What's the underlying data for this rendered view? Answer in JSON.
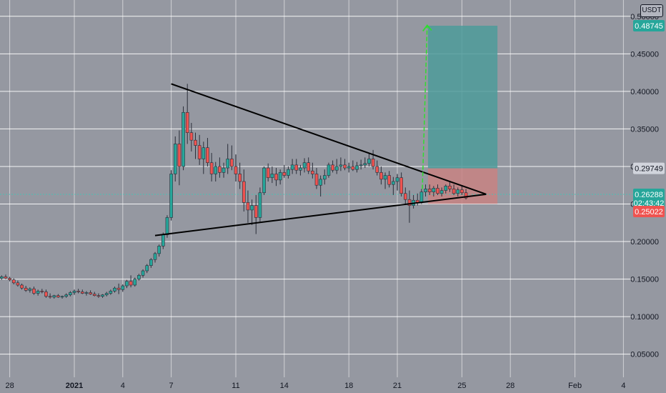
{
  "quote_currency": "USDT",
  "colors": {
    "background": "#9598a1",
    "grid": "#ffffff",
    "up_candle": "#26a69a",
    "down_candle": "#ef5350",
    "pattern_line": "#000000",
    "target_zone": "#4e9b9a",
    "stop_zone": "#c88283",
    "target_arrow": "#2ede2e",
    "last_price_line": "#4cc0b5"
  },
  "chart_data": {
    "type": "candlestick",
    "title": "",
    "xlabel": "",
    "ylabel": "",
    "ylim": [
      0.03,
      0.52
    ],
    "x_ticks": [
      {
        "label": "28",
        "x": -4,
        "bold": false
      },
      {
        "label": "2021",
        "x": 0,
        "bold": true
      },
      {
        "label": "4",
        "x": 3,
        "bold": false
      },
      {
        "label": "7",
        "x": 6,
        "bold": false
      },
      {
        "label": "11",
        "x": 10,
        "bold": false
      },
      {
        "label": "14",
        "x": 13,
        "bold": false
      },
      {
        "label": "18",
        "x": 17,
        "bold": false
      },
      {
        "label": "21",
        "x": 20,
        "bold": false
      },
      {
        "label": "25",
        "x": 24,
        "bold": false
      },
      {
        "label": "28",
        "x": 27,
        "bold": false
      },
      {
        "label": "Feb",
        "x": 31,
        "bold": false
      },
      {
        "label": "4",
        "x": 34,
        "bold": false
      }
    ],
    "y_ticks": [
      {
        "label": "0.05000",
        "y": 0.05
      },
      {
        "label": "0.10000",
        "y": 0.1
      },
      {
        "label": "0.15000",
        "y": 0.15
      },
      {
        "label": "0.20000",
        "y": 0.2
      },
      {
        "label": "0.25000",
        "y": 0.25
      },
      {
        "label": "0.30000",
        "y": 0.3
      },
      {
        "label": "0.35000",
        "y": 0.35
      },
      {
        "label": "0.40000",
        "y": 0.4
      },
      {
        "label": "0.45000",
        "y": 0.45
      },
      {
        "label": "0.50000",
        "y": 0.5
      }
    ],
    "price_tags": [
      {
        "label": "0.48745",
        "y": 0.48745,
        "color": "#26a69a"
      },
      {
        "label": "0.29749",
        "y": 0.29749,
        "color": "#d1d4dc",
        "text_color": "#131722"
      },
      {
        "label": "0.26288",
        "y": 0.26288,
        "color": "#26a69a"
      },
      {
        "label": "02:43:42",
        "y": 0.2515,
        "color": "#26a69a"
      },
      {
        "label": "0.25022",
        "y": 0.24,
        "color": "#ef5350"
      }
    ],
    "candles": [
      [
        -5.0,
        0.15,
        0.154,
        0.146,
        0.148
      ],
      [
        -4.75,
        0.148,
        0.152,
        0.146,
        0.151
      ],
      [
        -4.5,
        0.151,
        0.155,
        0.149,
        0.153
      ],
      [
        -4.25,
        0.153,
        0.156,
        0.15,
        0.151
      ],
      [
        -4.0,
        0.151,
        0.153,
        0.147,
        0.149
      ],
      [
        -3.75,
        0.149,
        0.151,
        0.143,
        0.145
      ],
      [
        -3.5,
        0.145,
        0.148,
        0.14,
        0.142
      ],
      [
        -3.25,
        0.142,
        0.144,
        0.136,
        0.138
      ],
      [
        -3.0,
        0.138,
        0.141,
        0.133,
        0.135
      ],
      [
        -2.75,
        0.135,
        0.139,
        0.132,
        0.137
      ],
      [
        -2.5,
        0.137,
        0.14,
        0.129,
        0.131
      ],
      [
        -2.25,
        0.131,
        0.136,
        0.128,
        0.134
      ],
      [
        -2.0,
        0.134,
        0.137,
        0.131,
        0.133
      ],
      [
        -1.75,
        0.133,
        0.136,
        0.125,
        0.127
      ],
      [
        -1.5,
        0.127,
        0.131,
        0.124,
        0.126
      ],
      [
        -1.25,
        0.126,
        0.129,
        0.124,
        0.128
      ],
      [
        -1.0,
        0.128,
        0.13,
        0.125,
        0.126
      ],
      [
        -0.75,
        0.126,
        0.128,
        0.124,
        0.127
      ],
      [
        -0.5,
        0.127,
        0.131,
        0.125,
        0.129
      ],
      [
        -0.25,
        0.129,
        0.134,
        0.127,
        0.132
      ],
      [
        0.0,
        0.132,
        0.136,
        0.129,
        0.134
      ],
      [
        0.25,
        0.134,
        0.137,
        0.131,
        0.133
      ],
      [
        0.5,
        0.133,
        0.136,
        0.13,
        0.131
      ],
      [
        0.75,
        0.131,
        0.134,
        0.128,
        0.132
      ],
      [
        1.0,
        0.132,
        0.135,
        0.129,
        0.13
      ],
      [
        1.25,
        0.13,
        0.133,
        0.127,
        0.128
      ],
      [
        1.5,
        0.128,
        0.131,
        0.125,
        0.127
      ],
      [
        1.75,
        0.127,
        0.13,
        0.125,
        0.129
      ],
      [
        2.0,
        0.129,
        0.133,
        0.127,
        0.131
      ],
      [
        2.25,
        0.131,
        0.136,
        0.129,
        0.134
      ],
      [
        2.5,
        0.134,
        0.14,
        0.132,
        0.138
      ],
      [
        2.75,
        0.138,
        0.144,
        0.13,
        0.136
      ],
      [
        3.0,
        0.136,
        0.143,
        0.133,
        0.141
      ],
      [
        3.25,
        0.141,
        0.149,
        0.138,
        0.147
      ],
      [
        3.5,
        0.147,
        0.155,
        0.139,
        0.142
      ],
      [
        3.75,
        0.142,
        0.152,
        0.14,
        0.15
      ],
      [
        4.0,
        0.15,
        0.157,
        0.148,
        0.155
      ],
      [
        4.25,
        0.155,
        0.163,
        0.152,
        0.161
      ],
      [
        4.5,
        0.161,
        0.17,
        0.158,
        0.168
      ],
      [
        4.75,
        0.168,
        0.178,
        0.165,
        0.176
      ],
      [
        5.0,
        0.176,
        0.186,
        0.172,
        0.184
      ],
      [
        5.25,
        0.184,
        0.196,
        0.18,
        0.194
      ],
      [
        5.5,
        0.194,
        0.212,
        0.19,
        0.209
      ],
      [
        5.75,
        0.209,
        0.235,
        0.205,
        0.232
      ],
      [
        6.0,
        0.232,
        0.295,
        0.228,
        0.29
      ],
      [
        6.25,
        0.29,
        0.34,
        0.28,
        0.33
      ],
      [
        6.5,
        0.33,
        0.348,
        0.275,
        0.3
      ],
      [
        6.75,
        0.3,
        0.38,
        0.295,
        0.372
      ],
      [
        7.0,
        0.372,
        0.41,
        0.33,
        0.345
      ],
      [
        7.25,
        0.345,
        0.358,
        0.32,
        0.335
      ],
      [
        7.5,
        0.335,
        0.345,
        0.31,
        0.328
      ],
      [
        7.75,
        0.328,
        0.342,
        0.302,
        0.31
      ],
      [
        8.0,
        0.31,
        0.333,
        0.29,
        0.325
      ],
      [
        8.25,
        0.325,
        0.338,
        0.3,
        0.305
      ],
      [
        8.5,
        0.305,
        0.318,
        0.28,
        0.29
      ],
      [
        8.75,
        0.29,
        0.306,
        0.28,
        0.3
      ],
      [
        9.0,
        0.3,
        0.312,
        0.285,
        0.292
      ],
      [
        9.25,
        0.292,
        0.305,
        0.285,
        0.298
      ],
      [
        9.5,
        0.298,
        0.33,
        0.29,
        0.31
      ],
      [
        9.75,
        0.31,
        0.328,
        0.295,
        0.3
      ],
      [
        10.0,
        0.3,
        0.316,
        0.28,
        0.29
      ],
      [
        10.25,
        0.29,
        0.305,
        0.27,
        0.28
      ],
      [
        10.5,
        0.28,
        0.296,
        0.24,
        0.252
      ],
      [
        10.75,
        0.252,
        0.268,
        0.225,
        0.242
      ],
      [
        11.0,
        0.242,
        0.256,
        0.222,
        0.248
      ],
      [
        11.25,
        0.248,
        0.262,
        0.21,
        0.232
      ],
      [
        11.5,
        0.232,
        0.272,
        0.225,
        0.265
      ],
      [
        11.75,
        0.265,
        0.3,
        0.262,
        0.298
      ],
      [
        12.0,
        0.298,
        0.304,
        0.28,
        0.285
      ],
      [
        12.25,
        0.285,
        0.3,
        0.278,
        0.29
      ],
      [
        12.5,
        0.29,
        0.298,
        0.274,
        0.282
      ],
      [
        12.75,
        0.282,
        0.296,
        0.276,
        0.292
      ],
      [
        13.0,
        0.292,
        0.302,
        0.285,
        0.288
      ],
      [
        13.25,
        0.288,
        0.3,
        0.284,
        0.296
      ],
      [
        13.5,
        0.296,
        0.31,
        0.29,
        0.302
      ],
      [
        13.75,
        0.302,
        0.31,
        0.29,
        0.295
      ],
      [
        14.0,
        0.295,
        0.302,
        0.288,
        0.298
      ],
      [
        14.25,
        0.298,
        0.311,
        0.292,
        0.305
      ],
      [
        14.5,
        0.305,
        0.312,
        0.29,
        0.294
      ],
      [
        14.75,
        0.294,
        0.305,
        0.284,
        0.29
      ],
      [
        15.0,
        0.29,
        0.298,
        0.27,
        0.275
      ],
      [
        15.25,
        0.275,
        0.288,
        0.26,
        0.283
      ],
      [
        15.5,
        0.283,
        0.296,
        0.276,
        0.288
      ],
      [
        15.75,
        0.288,
        0.305,
        0.285,
        0.302
      ],
      [
        16.0,
        0.302,
        0.308,
        0.292,
        0.295
      ],
      [
        16.25,
        0.295,
        0.31,
        0.29,
        0.3
      ],
      [
        16.5,
        0.3,
        0.312,
        0.294,
        0.302
      ],
      [
        16.75,
        0.302,
        0.31,
        0.295,
        0.298
      ],
      [
        17.0,
        0.298,
        0.305,
        0.292,
        0.3
      ],
      [
        17.25,
        0.3,
        0.308,
        0.294,
        0.296
      ],
      [
        17.5,
        0.296,
        0.306,
        0.292,
        0.301
      ],
      [
        17.75,
        0.301,
        0.309,
        0.296,
        0.302
      ],
      [
        18.0,
        0.302,
        0.312,
        0.298,
        0.304
      ],
      [
        18.25,
        0.304,
        0.318,
        0.3,
        0.31
      ],
      [
        18.5,
        0.31,
        0.322,
        0.296,
        0.3
      ],
      [
        18.75,
        0.3,
        0.308,
        0.288,
        0.292
      ],
      [
        19.0,
        0.292,
        0.3,
        0.276,
        0.283
      ],
      [
        19.25,
        0.283,
        0.292,
        0.27,
        0.288
      ],
      [
        19.5,
        0.288,
        0.294,
        0.272,
        0.276
      ],
      [
        19.75,
        0.276,
        0.286,
        0.262,
        0.28
      ],
      [
        20.0,
        0.28,
        0.29,
        0.268,
        0.285
      ],
      [
        20.25,
        0.285,
        0.292,
        0.26,
        0.264
      ],
      [
        20.5,
        0.264,
        0.272,
        0.25,
        0.256
      ],
      [
        20.75,
        0.256,
        0.268,
        0.225,
        0.248
      ],
      [
        21.0,
        0.248,
        0.262,
        0.244,
        0.255
      ],
      [
        21.25,
        0.255,
        0.264,
        0.248,
        0.252
      ],
      [
        21.5,
        0.252,
        0.27,
        0.25,
        0.266
      ],
      [
        21.75,
        0.266,
        0.276,
        0.26,
        0.27
      ],
      [
        22.0,
        0.27,
        0.276,
        0.262,
        0.266
      ],
      [
        22.25,
        0.266,
        0.274,
        0.26,
        0.271
      ],
      [
        22.5,
        0.271,
        0.276,
        0.262,
        0.264
      ],
      [
        22.75,
        0.264,
        0.272,
        0.26,
        0.268
      ],
      [
        23.0,
        0.268,
        0.276,
        0.264,
        0.274
      ],
      [
        23.25,
        0.274,
        0.28,
        0.266,
        0.27
      ],
      [
        23.5,
        0.27,
        0.276,
        0.262,
        0.264
      ],
      [
        23.75,
        0.264,
        0.272,
        0.26,
        0.269
      ],
      [
        24.0,
        0.269,
        0.274,
        0.262,
        0.265
      ],
      [
        24.25,
        0.265,
        0.27,
        0.256,
        0.258
      ]
    ],
    "overlays": {
      "resistance_line": {
        "from": [
          6.0,
          0.41
        ],
        "to": [
          25.5,
          0.263
        ]
      },
      "support_line": {
        "from": [
          5.0,
          0.208
        ],
        "to": [
          25.5,
          0.263
        ]
      },
      "target_zone": {
        "x": [
          21.9,
          26.2
        ],
        "y": [
          0.29749,
          0.48745
        ]
      },
      "stop_zone": {
        "x": [
          21.9,
          26.2
        ],
        "y": [
          0.25022,
          0.29749
        ]
      },
      "target_arrow": {
        "from": [
          21.55,
          0.27
        ],
        "to": [
          21.85,
          0.488
        ]
      },
      "last_price": 0.26288
    }
  }
}
